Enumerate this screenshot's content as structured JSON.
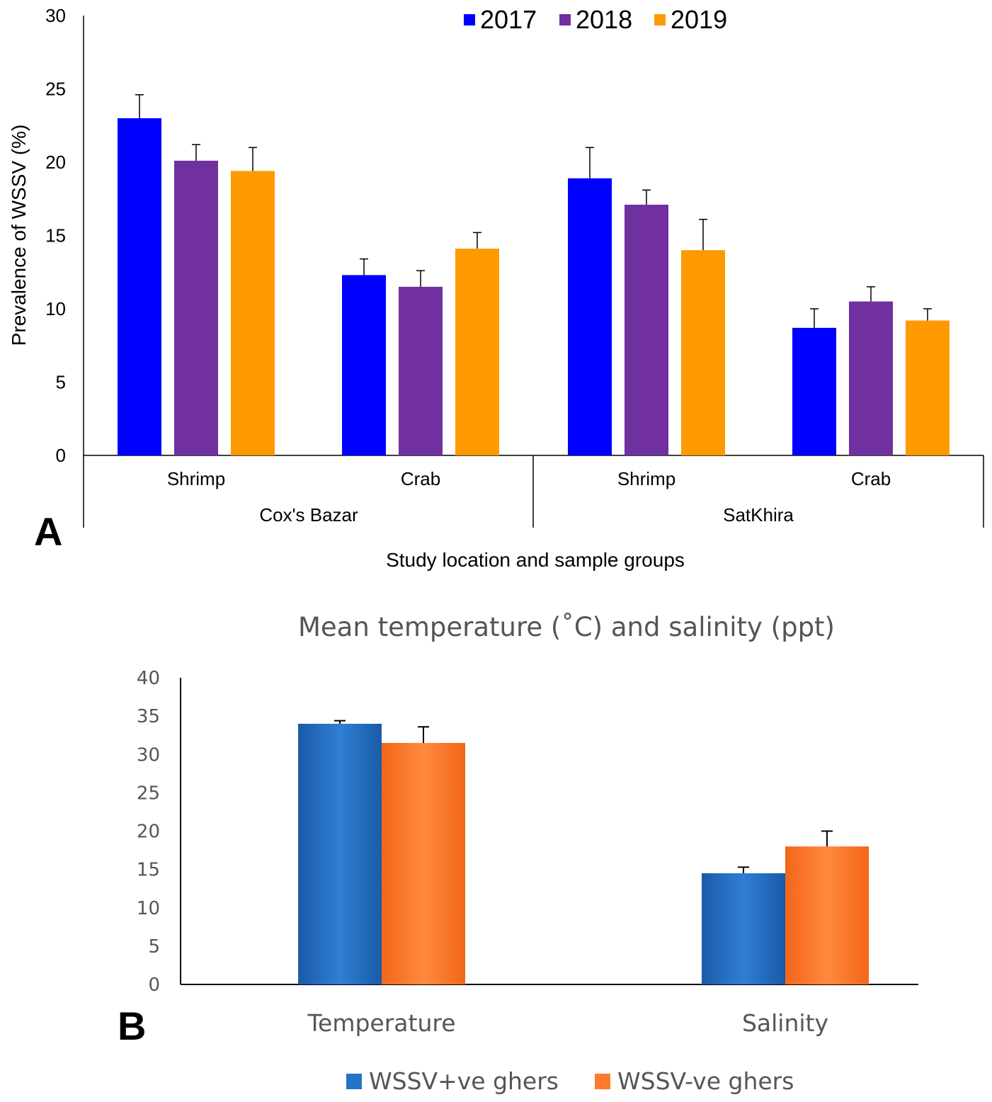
{
  "chart_data": [
    {
      "type": "bar",
      "panel_label": "A",
      "title": "",
      "xlabel": "Study location and sample groups",
      "ylabel": "Prevalence of WSSV (%)",
      "ylim": [
        0,
        30
      ],
      "yticks": [
        "0",
        "5",
        "10",
        "15",
        "20",
        "25",
        "30"
      ],
      "groups": [
        "Cox's Bazar",
        "SatKhira"
      ],
      "categories": [
        "Shrimp",
        "Crab",
        "Shrimp",
        "Crab"
      ],
      "series": [
        {
          "name": "2017",
          "color": "#0000ff",
          "values": [
            23.0,
            12.3,
            18.9,
            8.7
          ],
          "errors": [
            1.6,
            1.1,
            2.1,
            1.3
          ]
        },
        {
          "name": "2018",
          "color": "#7030a0",
          "values": [
            20.1,
            11.5,
            17.1,
            10.5
          ],
          "errors": [
            1.1,
            1.1,
            1.0,
            1.0
          ]
        },
        {
          "name": "2019",
          "color": "#ff9900",
          "values": [
            19.4,
            14.1,
            14.0,
            9.2
          ],
          "errors": [
            1.6,
            1.1,
            2.1,
            0.8
          ]
        }
      ],
      "legend_position": "top"
    },
    {
      "type": "bar",
      "panel_label": "B",
      "title": "Mean temperature (˚C) and salinity (ppt)",
      "xlabel": "",
      "ylabel": "",
      "ylim": [
        0,
        40
      ],
      "yticks": [
        "0",
        "5",
        "10",
        "15",
        "20",
        "25",
        "30",
        "35",
        "40"
      ],
      "categories": [
        "Temperature",
        "Salinity"
      ],
      "series": [
        {
          "name": "WSSV+ve ghers",
          "color": "#2673c8",
          "values": [
            34.0,
            14.5
          ],
          "errors": [
            0.4,
            0.8
          ]
        },
        {
          "name": "WSSV-ve ghers",
          "color": "#ff7a2a",
          "values": [
            31.5,
            18.0
          ],
          "errors": [
            2.1,
            2.0
          ]
        }
      ],
      "legend_position": "bottom"
    }
  ]
}
